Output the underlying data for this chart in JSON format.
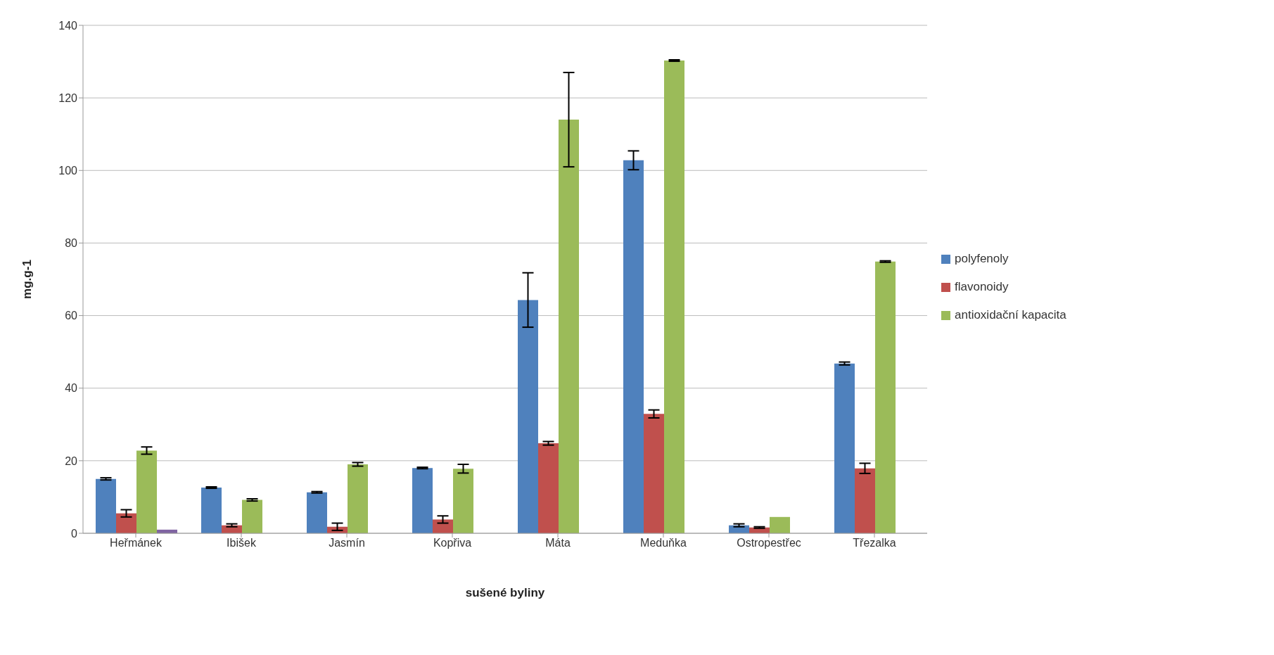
{
  "chart_data": {
    "type": "bar",
    "xlabel": "sušené byliny",
    "ylabel": "mg.g-1",
    "categories": [
      "Heřmánek",
      "Ibišek",
      "Jasmín",
      "Kopřiva",
      "Máta",
      "Meduňka",
      "Ostropestřec",
      "Třezalka"
    ],
    "series": [
      {
        "name": "polyfenoly",
        "color": "#4f81bd",
        "values": [
          15,
          12.6,
          11.3,
          18,
          64.3,
          102.8,
          2.2,
          46.8
        ],
        "errors": [
          0.3,
          0.2,
          0.2,
          0.2,
          7.5,
          2.6,
          0.4,
          0.4
        ]
      },
      {
        "name": "flavonoidy",
        "color": "#c0504d",
        "values": [
          5.5,
          2.2,
          1.8,
          3.8,
          24.8,
          32.9,
          1.6,
          17.9
        ],
        "errors": [
          1,
          0.4,
          1,
          1,
          0.5,
          1.1,
          0.2,
          1.4
        ]
      },
      {
        "name": "antioxidační kapacita",
        "color": "#9bbb59",
        "values": [
          22.8,
          9.2,
          19,
          17.8,
          114,
          130.3,
          4.5,
          74.9
        ],
        "errors": [
          1,
          0.3,
          0.5,
          1.2,
          13,
          0.2,
          null,
          0.2
        ]
      },
      {
        "color": "#8064a2",
        "values": [
          1,
          null,
          null,
          null,
          null,
          null,
          null,
          null
        ]
      }
    ],
    "ylim": [
      0,
      140
    ],
    "yticks": [
      0,
      20,
      40,
      60,
      80,
      100,
      120,
      140
    ],
    "grid": "y",
    "legend": "right"
  }
}
